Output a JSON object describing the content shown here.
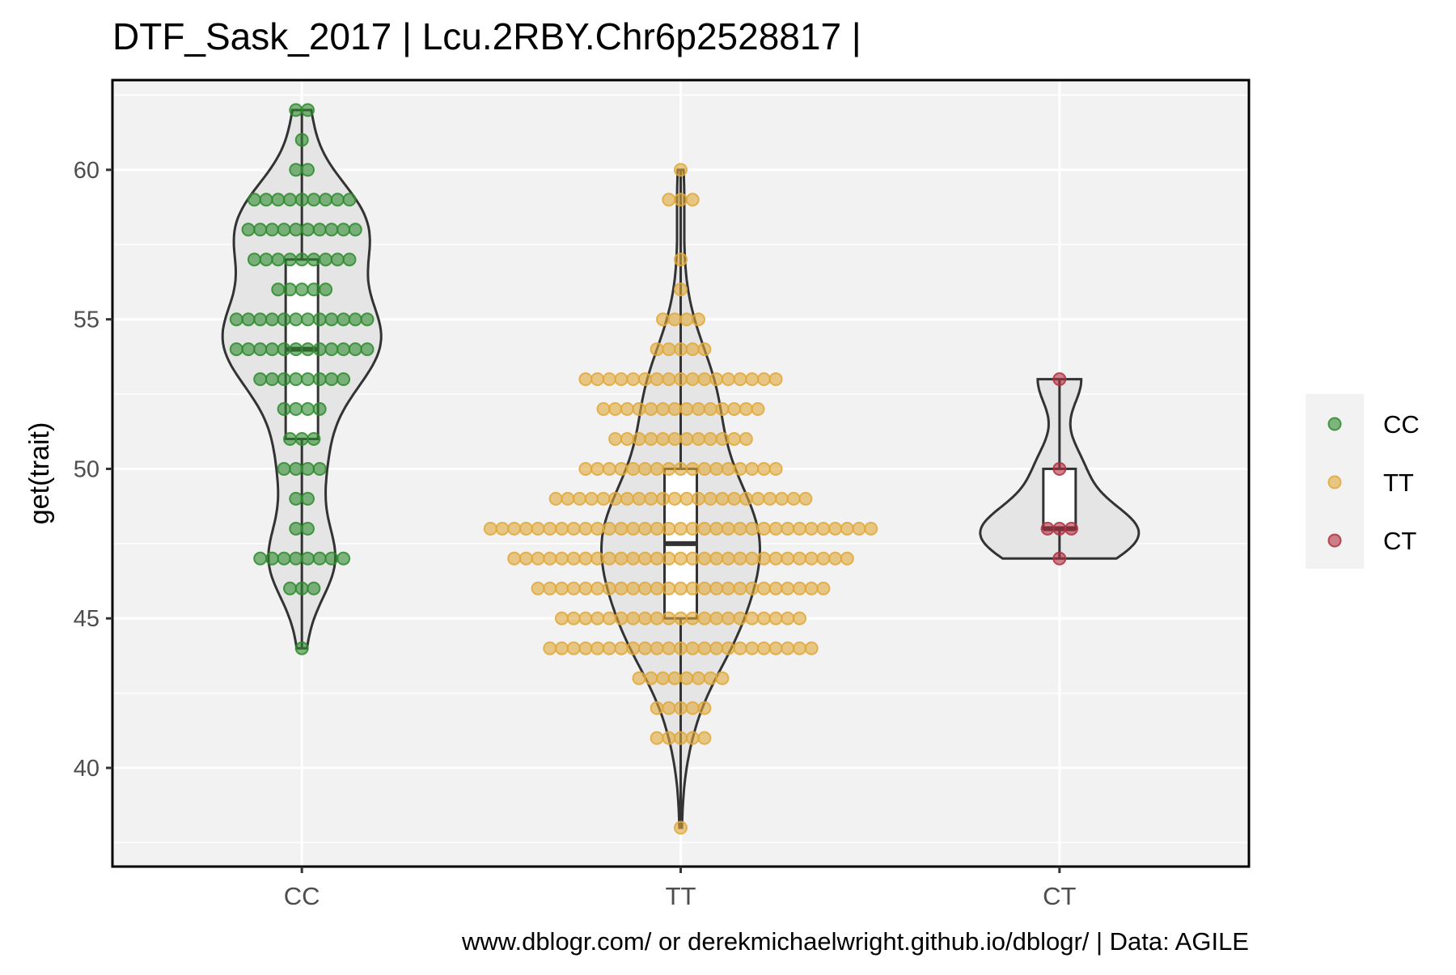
{
  "chart_data": {
    "type": "violin",
    "title": "DTF_Sask_2017 | Lcu.2RBY.Chr6p2528817 |",
    "xlabel": "",
    "ylabel": "get(trait)",
    "caption": "www.dblogr.com/ or derekmichaelwright.github.io/dblogr/ | Data: AGILE",
    "categories": [
      "CC",
      "TT",
      "CT"
    ],
    "ylim": [
      36.7,
      63.0
    ],
    "yticks": [
      40,
      45,
      50,
      55,
      60
    ],
    "grid": true,
    "legend_position": "right",
    "legend": [
      "CC",
      "TT",
      "CT"
    ],
    "colors": {
      "CC": "#2e8b2e",
      "TT": "#e0a83a",
      "CT": "#b03040",
      "panel": "#f2f2f2",
      "violin_fill": "#e5e5e5",
      "outline": "#333333"
    },
    "series": [
      {
        "name": "CC",
        "box": {
          "min": 44,
          "q1": 51,
          "median": 54,
          "q3": 57,
          "max": 62
        },
        "counts": {
          "44": 1,
          "46": 3,
          "47": 8,
          "48": 2,
          "49": 2,
          "50": 4,
          "51": 3,
          "52": 4,
          "53": 8,
          "54": 12,
          "55": 12,
          "56": 5,
          "57": 9,
          "58": 10,
          "59": 9,
          "60": 2,
          "61": 1,
          "62": 2
        }
      },
      {
        "name": "TT",
        "box": {
          "min": 38,
          "q1": 45,
          "median": 47.5,
          "q3": 50,
          "max": 60
        },
        "counts": {
          "38": 1,
          "41": 5,
          "42": 5,
          "43": 8,
          "44": 23,
          "45": 21,
          "46": 25,
          "47": 29,
          "48": 33,
          "49": 22,
          "50": 17,
          "51": 12,
          "52": 14,
          "53": 17,
          "54": 5,
          "55": 4,
          "56": 1,
          "57": 1,
          "59": 3,
          "60": 1
        }
      },
      {
        "name": "CT",
        "box": {
          "min": 47,
          "q1": 48,
          "median": 48,
          "q3": 50,
          "max": 53
        },
        "counts": {
          "47": 1,
          "48": 3,
          "50": 1,
          "53": 1
        }
      }
    ]
  }
}
